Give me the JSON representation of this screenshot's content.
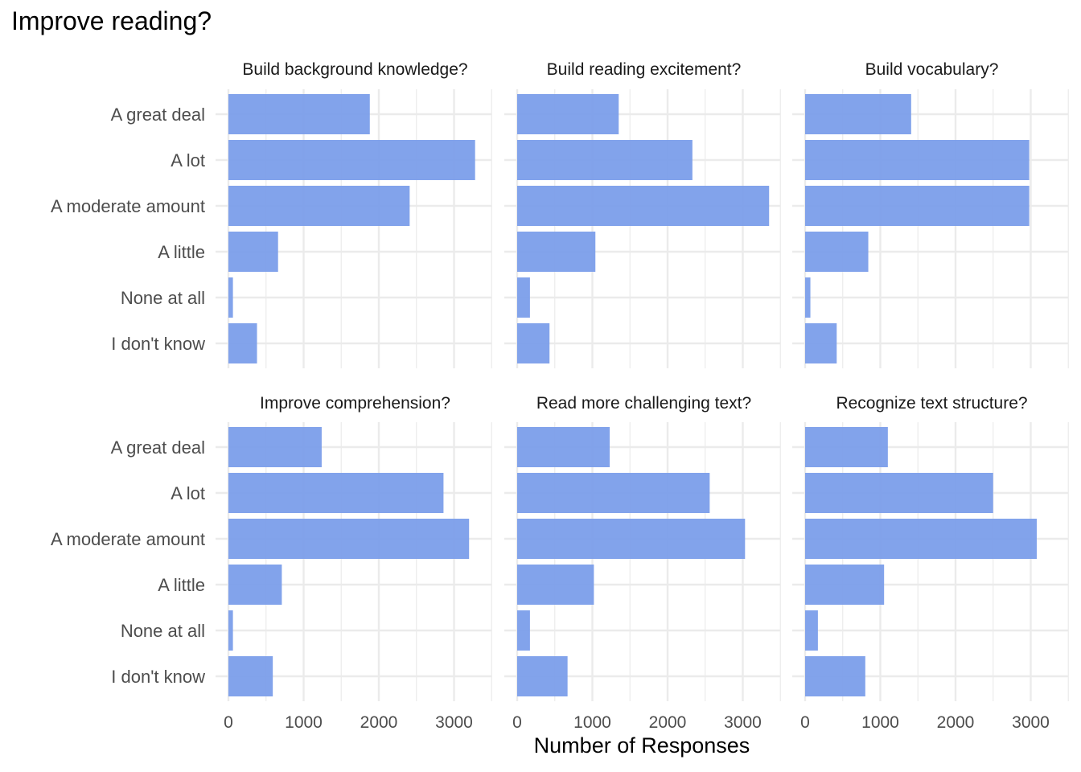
{
  "chart_title": "Improve reading?",
  "chart_data": {
    "type": "bar",
    "orientation": "horizontal",
    "title": "Improve reading?",
    "xlabel": "Number of Responses",
    "ylabel": "",
    "xlim": [
      0,
      3500
    ],
    "x_ticks": [
      "0",
      "1000",
      "2000",
      "3000"
    ],
    "x_tick_values": [
      0,
      1000,
      2000,
      3000
    ],
    "grid": true,
    "bar_color": "#7B9EEA",
    "categories": [
      "A great deal",
      "A lot",
      "A moderate amount",
      "A little",
      "None at all",
      "I don't know"
    ],
    "facets": [
      {
        "name": "Build background knowledge?",
        "values": [
          1880,
          3280,
          2410,
          660,
          60,
          380
        ]
      },
      {
        "name": "Build reading excitement?",
        "values": [
          1350,
          2330,
          3350,
          1040,
          170,
          430
        ]
      },
      {
        "name": "Build vocabulary?",
        "values": [
          1410,
          2980,
          2980,
          840,
          70,
          420
        ]
      },
      {
        "name": "Improve comprehension?",
        "values": [
          1240,
          2860,
          3200,
          710,
          60,
          590
        ]
      },
      {
        "name": "Read more challenging text?",
        "values": [
          1230,
          2560,
          3030,
          1020,
          170,
          670
        ]
      },
      {
        "name": "Recognize text structure?",
        "values": [
          1100,
          2500,
          3080,
          1050,
          170,
          800
        ]
      }
    ]
  }
}
